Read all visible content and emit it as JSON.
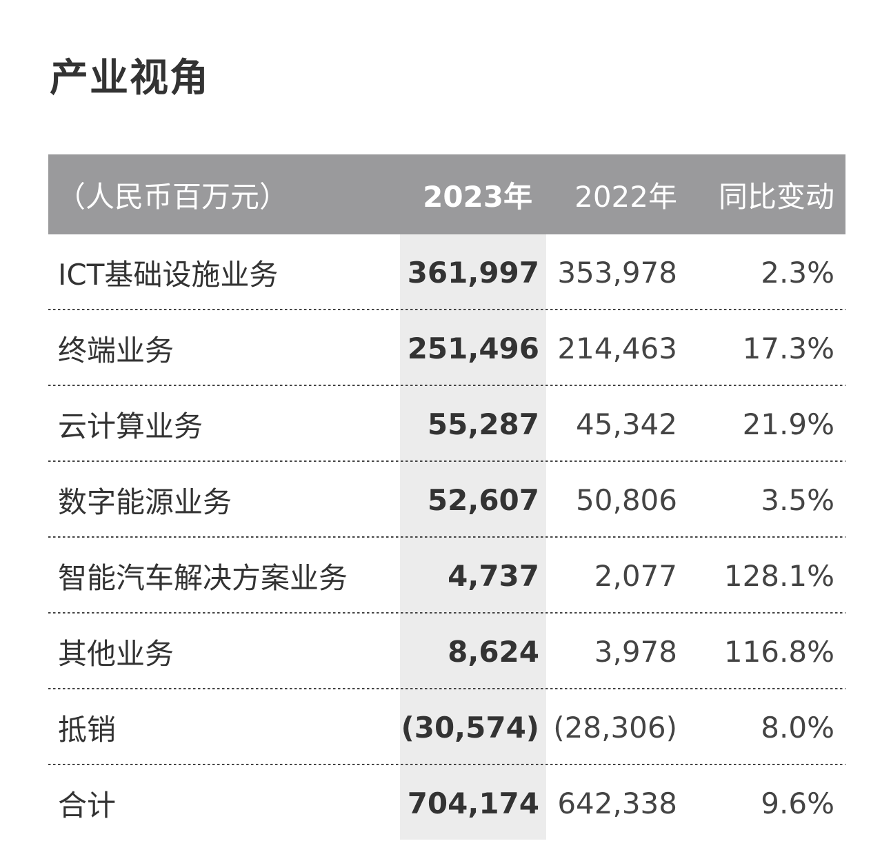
{
  "title": "产业视角",
  "table": {
    "header": {
      "label": "（人民币百万元）",
      "col_2023": "2023年",
      "col_2022": "2022年",
      "col_yoy": "同比变动"
    },
    "rows": [
      {
        "label": "ICT基础设施业务",
        "v2023": "361,997",
        "v2022": "353,978",
        "yoy": "2.3%"
      },
      {
        "label": "终端业务",
        "v2023": "251,496",
        "v2022": "214,463",
        "yoy": "17.3%"
      },
      {
        "label": "云计算业务",
        "v2023": "55,287",
        "v2022": "45,342",
        "yoy": "21.9%"
      },
      {
        "label": "数字能源业务",
        "v2023": "52,607",
        "v2022": "50,806",
        "yoy": "3.5%"
      },
      {
        "label": "智能汽车解决方案业务",
        "v2023": "4,737",
        "v2022": "2,077",
        "yoy": "128.1%"
      },
      {
        "label": "其他业务",
        "v2023": "8,624",
        "v2022": "3,978",
        "yoy": "116.8%"
      },
      {
        "label": "抵销",
        "v2023": "(30,574)",
        "v2022": "(28,306)",
        "yoy": "8.0%"
      },
      {
        "label": "合计",
        "v2023": "704,174",
        "v2022": "642,338",
        "yoy": "9.6%"
      }
    ]
  },
  "colors": {
    "header_bg": "#9a9a9c",
    "highlight_col_bg": "#ececec",
    "text": "#333333"
  }
}
